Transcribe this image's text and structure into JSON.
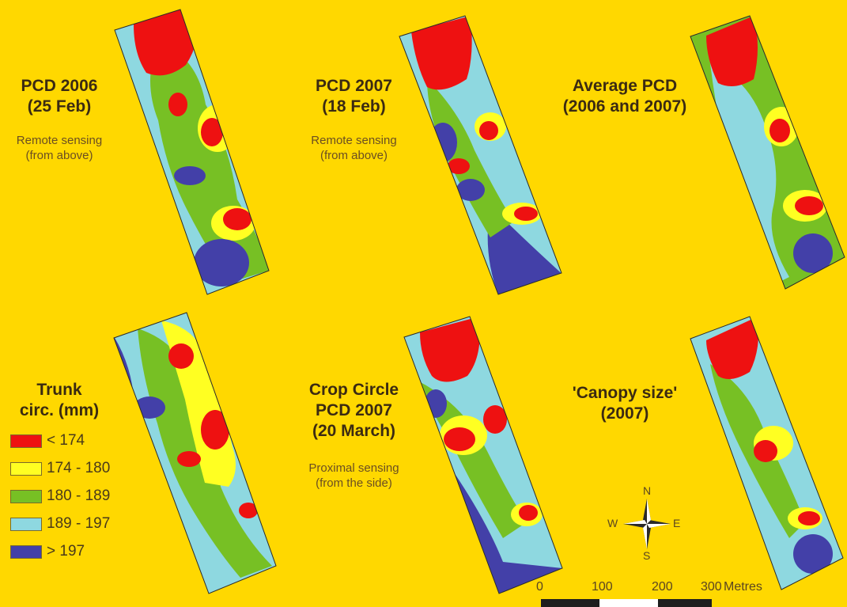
{
  "panels": [
    {
      "id": "pcd2006",
      "title_line1": "PCD 2006",
      "title_line2": "(25 Feb)",
      "subtitle_line1": "Remote sensing",
      "subtitle_line2": "(from above)"
    },
    {
      "id": "pcd2007",
      "title_line1": "PCD 2007",
      "title_line2": "(18 Feb)",
      "subtitle_line1": "Remote sensing",
      "subtitle_line2": "(from above)"
    },
    {
      "id": "avgpcd",
      "title_line1": "Average PCD",
      "title_line2": "(2006 and 2007)",
      "subtitle_line1": "",
      "subtitle_line2": ""
    },
    {
      "id": "cropcircle",
      "title_line1": "Crop Circle",
      "title_line2": "PCD 2007",
      "title_line3": "(20 March)",
      "subtitle_line1": "Proximal sensing",
      "subtitle_line2": "(from the side)"
    },
    {
      "id": "canopy",
      "title_line1": "'Canopy size'",
      "title_line2": "(2007)",
      "subtitle_line1": "",
      "subtitle_line2": ""
    }
  ],
  "legend": {
    "title_line1": "Trunk",
    "title_line2": "circ. (mm)",
    "items": [
      {
        "label": "< 174",
        "color": "#EE1111"
      },
      {
        "label": "174 - 180",
        "color": "#FFFF22"
      },
      {
        "label": "180 - 189",
        "color": "#77C024"
      },
      {
        "label": "189 - 197",
        "color": "#8ED8E0"
      },
      {
        "label": "> 197",
        "color": "#4340A8"
      }
    ]
  },
  "compass": {
    "n": "N",
    "s": "S",
    "e": "E",
    "w": "W"
  },
  "scale": {
    "ticks": [
      "0",
      "100",
      "200",
      "300"
    ],
    "unit": "Metres"
  },
  "colors": {
    "background": "#FFD800",
    "class_red": "#EE1111",
    "class_yellow": "#FFFF22",
    "class_green": "#77C024",
    "class_lightblue": "#8ED8E0",
    "class_darkblue": "#4340A8"
  }
}
